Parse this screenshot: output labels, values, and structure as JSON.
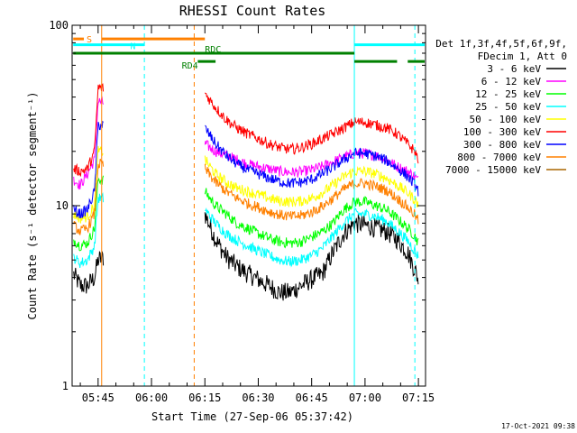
{
  "chart_data": {
    "type": "line",
    "title": "RHESSI Count Rates",
    "xlabel": "Start Time (27-Sep-06 05:37:42)",
    "ylabel": "Count Rate (s⁻¹ detector segment⁻¹)",
    "y_scale": "log",
    "ylim": [
      1,
      100
    ],
    "y_ticks": [
      "1",
      "10",
      "100"
    ],
    "xlim": [
      "05:37:42",
      "07:17:00"
    ],
    "x_ticks": [
      "05:45",
      "06:00",
      "06:15",
      "06:30",
      "06:45",
      "07:00",
      "07:15"
    ],
    "legend_header": [
      "Det 1f,3f,4f,5f,6f,9f,",
      "FDecim 1, Att 0"
    ],
    "legend_position": "right",
    "footer_date": "17-Oct-2021 09:38",
    "data_gap": [
      "05:46:30",
      "06:15:00"
    ],
    "series": [
      {
        "name": "3 - 6 keV",
        "color": "#000000",
        "x": [
          "05:38",
          "05:40",
          "05:42",
          "05:44",
          "05:45",
          "06:15",
          "06:18",
          "06:21",
          "06:24",
          "06:27",
          "06:30",
          "06:33",
          "06:36",
          "06:39",
          "06:42",
          "06:45",
          "06:48",
          "06:51",
          "06:54",
          "06:57",
          "07:00",
          "07:03",
          "07:06",
          "07:09",
          "07:12",
          "07:14",
          "07:15"
        ],
        "values": [
          4.2,
          3.6,
          3.6,
          4.0,
          5.0,
          9.0,
          6.5,
          5.2,
          4.6,
          4.2,
          3.9,
          3.6,
          3.3,
          3.3,
          3.6,
          3.9,
          4.2,
          5.5,
          7.0,
          8.0,
          7.8,
          7.5,
          7.2,
          6.5,
          5.5,
          4.4,
          3.9
        ]
      },
      {
        "name": "6 - 12 keV",
        "color": "#ff00ff",
        "x": [
          "05:38",
          "05:40",
          "05:42",
          "05:44",
          "05:45",
          "06:15",
          "06:18",
          "06:21",
          "06:24",
          "06:27",
          "06:30",
          "06:33",
          "06:36",
          "06:39",
          "06:42",
          "06:45",
          "06:48",
          "06:51",
          "06:54",
          "06:57",
          "07:00",
          "07:03",
          "07:06",
          "07:09",
          "07:12",
          "07:14",
          "07:15"
        ],
        "values": [
          14,
          13,
          15,
          18,
          38,
          22,
          20,
          19,
          18,
          17,
          16.5,
          16,
          15.5,
          15.3,
          15.4,
          15.8,
          16.5,
          17.5,
          18.5,
          19.5,
          19.5,
          19.0,
          18.0,
          16.5,
          15.5,
          14.5,
          13.8
        ]
      },
      {
        "name": "12 - 25 keV",
        "color": "#00ff00",
        "x": [
          "05:38",
          "05:40",
          "05:42",
          "05:44",
          "05:45",
          "06:15",
          "06:18",
          "06:21",
          "06:24",
          "06:27",
          "06:30",
          "06:33",
          "06:36",
          "06:39",
          "06:42",
          "06:45",
          "06:48",
          "06:51",
          "06:54",
          "06:57",
          "07:00",
          "07:03",
          "07:06",
          "07:09",
          "07:12",
          "07:14",
          "07:15"
        ],
        "values": [
          6.5,
          6.0,
          6.2,
          7.5,
          14,
          12,
          10,
          9.0,
          8.0,
          7.5,
          7.0,
          6.6,
          6.3,
          6.2,
          6.3,
          6.7,
          7.2,
          8.0,
          9.5,
          10.5,
          10.5,
          10.0,
          9.5,
          8.5,
          7.5,
          6.8,
          6.2
        ]
      },
      {
        "name": "25 - 50 keV",
        "color": "#00ffff",
        "x": [
          "05:38",
          "05:40",
          "05:42",
          "05:44",
          "05:45",
          "06:15",
          "06:18",
          "06:21",
          "06:24",
          "06:27",
          "06:30",
          "06:33",
          "06:36",
          "06:39",
          "06:42",
          "06:45",
          "06:48",
          "06:51",
          "06:54",
          "06:57",
          "07:00",
          "07:03",
          "07:06",
          "07:09",
          "07:12",
          "07:14",
          "07:15"
        ],
        "values": [
          5.2,
          4.8,
          5.0,
          6.0,
          11,
          9.5,
          8.0,
          7.0,
          6.4,
          6.0,
          5.6,
          5.3,
          5.0,
          4.9,
          5.0,
          5.3,
          5.8,
          6.8,
          8.0,
          9.0,
          9.0,
          8.7,
          8.2,
          7.3,
          6.4,
          5.6,
          5.2
        ]
      },
      {
        "name": "50 - 100 keV",
        "color": "#ffff00",
        "x": [
          "05:38",
          "05:40",
          "05:42",
          "05:44",
          "05:45",
          "06:15",
          "06:18",
          "06:21",
          "06:24",
          "06:27",
          "06:30",
          "06:33",
          "06:36",
          "06:39",
          "06:42",
          "06:45",
          "06:48",
          "06:51",
          "06:54",
          "06:57",
          "07:00",
          "07:03",
          "07:06",
          "07:09",
          "07:12",
          "07:14",
          "07:15"
        ],
        "values": [
          9.0,
          8.5,
          8.7,
          10,
          20,
          18,
          15,
          13.5,
          12.5,
          12,
          11.5,
          11,
          10.6,
          10.5,
          10.6,
          11,
          11.8,
          13,
          14.5,
          15.5,
          15.5,
          15.0,
          14.2,
          13,
          11.8,
          10.8,
          10
        ]
      },
      {
        "name": "100 - 300 keV",
        "color": "#ff0000",
        "x": [
          "05:38",
          "05:40",
          "05:42",
          "05:44",
          "05:45",
          "06:15",
          "06:18",
          "06:21",
          "06:24",
          "06:27",
          "06:30",
          "06:33",
          "06:36",
          "06:39",
          "06:42",
          "06:45",
          "06:48",
          "06:51",
          "06:54",
          "06:57",
          "07:00",
          "07:03",
          "07:06",
          "07:09",
          "07:12",
          "07:14",
          "07:15"
        ],
        "values": [
          16,
          15.5,
          16,
          20,
          45,
          42,
          35,
          30,
          27,
          25,
          23.5,
          22,
          21,
          20.5,
          21,
          22,
          23.5,
          25,
          27,
          29,
          29,
          28,
          27,
          25,
          22,
          20,
          18
        ]
      },
      {
        "name": "300 - 800 keV",
        "color": "#0000ff",
        "x": [
          "05:38",
          "05:40",
          "05:42",
          "05:44",
          "05:45",
          "06:15",
          "06:18",
          "06:21",
          "06:24",
          "06:27",
          "06:30",
          "06:33",
          "06:36",
          "06:39",
          "06:42",
          "06:45",
          "06:48",
          "06:51",
          "06:54",
          "06:57",
          "07:00",
          "07:03",
          "07:06",
          "07:09",
          "07:12",
          "07:14",
          "07:15"
        ],
        "values": [
          9.5,
          9.0,
          9.5,
          12,
          28,
          27,
          22,
          19,
          17,
          15.8,
          15,
          14.2,
          13.6,
          13.3,
          13.5,
          14,
          15,
          16.3,
          18,
          19.5,
          19.5,
          18.8,
          17.8,
          16.2,
          14.5,
          13,
          12
        ]
      },
      {
        "name": "800 - 7000 keV",
        "color": "#ff8000",
        "x": [
          "05:38",
          "05:40",
          "05:42",
          "05:44",
          "05:45",
          "06:15",
          "06:18",
          "06:21",
          "06:24",
          "06:27",
          "06:30",
          "06:33",
          "06:36",
          "06:39",
          "06:42",
          "06:45",
          "06:48",
          "06:51",
          "06:54",
          "06:57",
          "07:00",
          "07:03",
          "07:06",
          "07:09",
          "07:12",
          "07:14",
          "07:15"
        ],
        "values": [
          7.8,
          7.2,
          7.5,
          9,
          17,
          16,
          13.5,
          12,
          11,
          10.3,
          9.8,
          9.3,
          8.9,
          8.7,
          8.8,
          9.2,
          9.9,
          11,
          12.3,
          13.3,
          13.3,
          12.8,
          12.2,
          11,
          9.8,
          8.9,
          8.2
        ]
      },
      {
        "name": "7000 - 15000 keV",
        "color": "#aa6600",
        "x": [],
        "values": []
      }
    ],
    "overlays": [
      {
        "label": "S",
        "color": "#ff8000",
        "y": 84,
        "intervals": [
          [
            "05:38",
            "05:41"
          ],
          [
            "05:46",
            "06:15"
          ]
        ]
      },
      {
        "label": "N",
        "color": "#00ffff",
        "y": 78,
        "intervals": [
          [
            "05:38",
            "05:58"
          ],
          [
            "06:57",
            "07:17"
          ]
        ]
      },
      {
        "label": "RDC",
        "color": "#008000",
        "y": 70,
        "intervals": [
          [
            "05:38",
            "06:57"
          ]
        ]
      },
      {
        "label": "RD4",
        "color": "#008000",
        "y": 63,
        "intervals": [
          [
            "06:13",
            "06:18"
          ],
          [
            "06:57",
            "07:09"
          ],
          [
            "07:12",
            "07:17"
          ]
        ]
      }
    ],
    "vertical_markers": [
      {
        "time": "05:46",
        "color": "#ff8000",
        "style": "solid"
      },
      {
        "time": "05:58",
        "color": "#00ffff",
        "style": "dashed"
      },
      {
        "time": "06:12",
        "color": "#ff8000",
        "style": "dashed"
      },
      {
        "time": "06:57",
        "color": "#00ffff",
        "style": "solid"
      },
      {
        "time": "07:14",
        "color": "#00ffff",
        "style": "dashed"
      }
    ]
  }
}
